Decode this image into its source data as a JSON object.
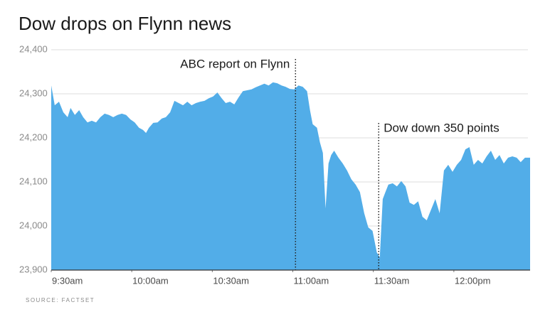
{
  "chart_data": {
    "type": "area",
    "title": "Dow drops on Flynn news",
    "source": "SOURCE: FACTSET",
    "color": "#52ade8",
    "grid": true,
    "xlim": [
      570,
      748.4
    ],
    "xticks": [
      {
        "value": 570,
        "label": "9:30am"
      },
      {
        "value": 600,
        "label": "10:00am"
      },
      {
        "value": 630,
        "label": "10:30am"
      },
      {
        "value": 660,
        "label": "11:00am"
      },
      {
        "value": 690,
        "label": "11:30am"
      },
      {
        "value": 720,
        "label": "12:00pm"
      }
    ],
    "ylim": [
      23900,
      24400
    ],
    "yticks": [
      {
        "value": 23900,
        "label": "23,900"
      },
      {
        "value": 24000,
        "label": "24,000"
      },
      {
        "value": 24100,
        "label": "24,100"
      },
      {
        "value": 24200,
        "label": "24,200"
      },
      {
        "value": 24300,
        "label": "24,300"
      },
      {
        "value": 24400,
        "label": "24,400"
      }
    ],
    "annotations": [
      {
        "text": "ABC report on Flynn",
        "x": 661
      },
      {
        "text": "Dow down 350 points",
        "x": 692
      }
    ],
    "x": [
      570,
      571.3,
      572.9,
      574.5,
      576.1,
      577.2,
      578.8,
      580.4,
      581.9,
      583.5,
      585.1,
      586.7,
      588.3,
      589.9,
      591.5,
      593.1,
      594.7,
      596.3,
      597.9,
      599.5,
      601.1,
      602.7,
      604.2,
      605.3,
      606.4,
      608.0,
      609.6,
      611.2,
      612.7,
      614.3,
      615.9,
      617.5,
      619.1,
      620.7,
      622.3,
      623.9,
      625.5,
      627.1,
      628.7,
      630.3,
      631.9,
      633.5,
      635.0,
      636.6,
      638.2,
      639.8,
      641.4,
      643.0,
      644.6,
      646.2,
      647.8,
      649.4,
      651.0,
      652.6,
      654.2,
      655.8,
      657.3,
      658.9,
      660.5,
      662.1,
      663.7,
      665.3,
      666.4,
      667.4,
      669.0,
      670.1,
      671.2,
      672.2,
      673.3,
      674.3,
      675.4,
      677.0,
      678.6,
      680.2,
      681.8,
      683.4,
      685.0,
      686.6,
      688.1,
      689.7,
      691.3,
      692.4,
      693.5,
      694.5,
      695.6,
      697.2,
      698.8,
      700.4,
      702.0,
      703.5,
      705.1,
      706.7,
      708.3,
      709.9,
      711.5,
      713.1,
      714.7,
      716.3,
      717.9,
      719.5,
      721.1,
      722.7,
      724.3,
      725.8,
      727.4,
      729.0,
      730.6,
      732.2,
      733.8,
      735.4,
      737.0,
      738.6,
      740.2,
      741.8,
      743.4,
      744.9,
      746.5,
      748.4
    ],
    "values": [
      24319,
      24274,
      24282,
      24258,
      24247,
      24268,
      24252,
      24263,
      24247,
      24235,
      24239,
      24235,
      24247,
      24255,
      24252,
      24247,
      24252,
      24255,
      24252,
      24242,
      24235,
      24223,
      24218,
      24211,
      24223,
      24234,
      24235,
      24244,
      24247,
      24258,
      24284,
      24279,
      24274,
      24282,
      24274,
      24279,
      24282,
      24284,
      24290,
      24294,
      24303,
      24290,
      24279,
      24282,
      24276,
      24292,
      24306,
      24308,
      24310,
      24315,
      24319,
      24323,
      24319,
      24326,
      24324,
      24319,
      24316,
      24311,
      24310,
      24319,
      24316,
      24306,
      24263,
      24231,
      24223,
      24190,
      24166,
      24040,
      24142,
      24161,
      24171,
      24155,
      24142,
      24126,
      24106,
      24094,
      24077,
      24029,
      23997,
      23989,
      23940,
      23929,
      24061,
      24077,
      24094,
      24097,
      24090,
      24102,
      24090,
      24053,
      24048,
      24056,
      24021,
      24013,
      24037,
      24061,
      24029,
      24126,
      24139,
      24123,
      24139,
      24150,
      24174,
      24179,
      24139,
      24150,
      24142,
      24158,
      24171,
      24150,
      24161,
      24142,
      24155,
      24158,
      24155,
      24145,
      24155,
      24155
    ]
  }
}
